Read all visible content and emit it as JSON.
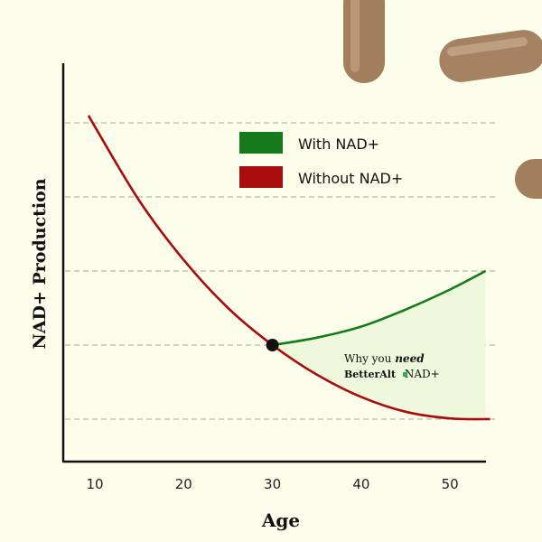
{
  "chart_data": {
    "type": "line",
    "title": "",
    "xlabel": "Age",
    "ylabel": "NAD+ Production",
    "xlim": [
      7,
      55
    ],
    "ylim": [
      0.44,
      5.66
    ],
    "x_ticks": [
      10,
      20,
      30,
      40,
      50
    ],
    "grid": "horizontal dashed",
    "legend_placement": "top-center",
    "series": [
      {
        "name": "With NAD+",
        "color": "#157a1c",
        "x": [
          30,
          35,
          40,
          45,
          50,
          54
        ],
        "y": [
          2.0,
          2.1,
          2.25,
          2.48,
          2.75,
          3.0
        ]
      },
      {
        "name": "Without NAD+",
        "color": "#a80c0c",
        "x": [
          9.3,
          10,
          15,
          20,
          25,
          30,
          35,
          40,
          45,
          50,
          54.5
        ],
        "y": [
          5.1,
          4.95,
          3.95,
          3.15,
          2.5,
          2.0,
          1.6,
          1.3,
          1.1,
          1.01,
          1.0
        ]
      }
    ],
    "annotation": {
      "line1_plain": "Why you ",
      "line1_bold": "need",
      "brand": "BetterAlt",
      "line2": " NAD+",
      "fill_color": "#eef8dc",
      "brand_dot_color": "#2fb24a"
    },
    "marker": {
      "x": 30,
      "y": 2.0
    }
  }
}
